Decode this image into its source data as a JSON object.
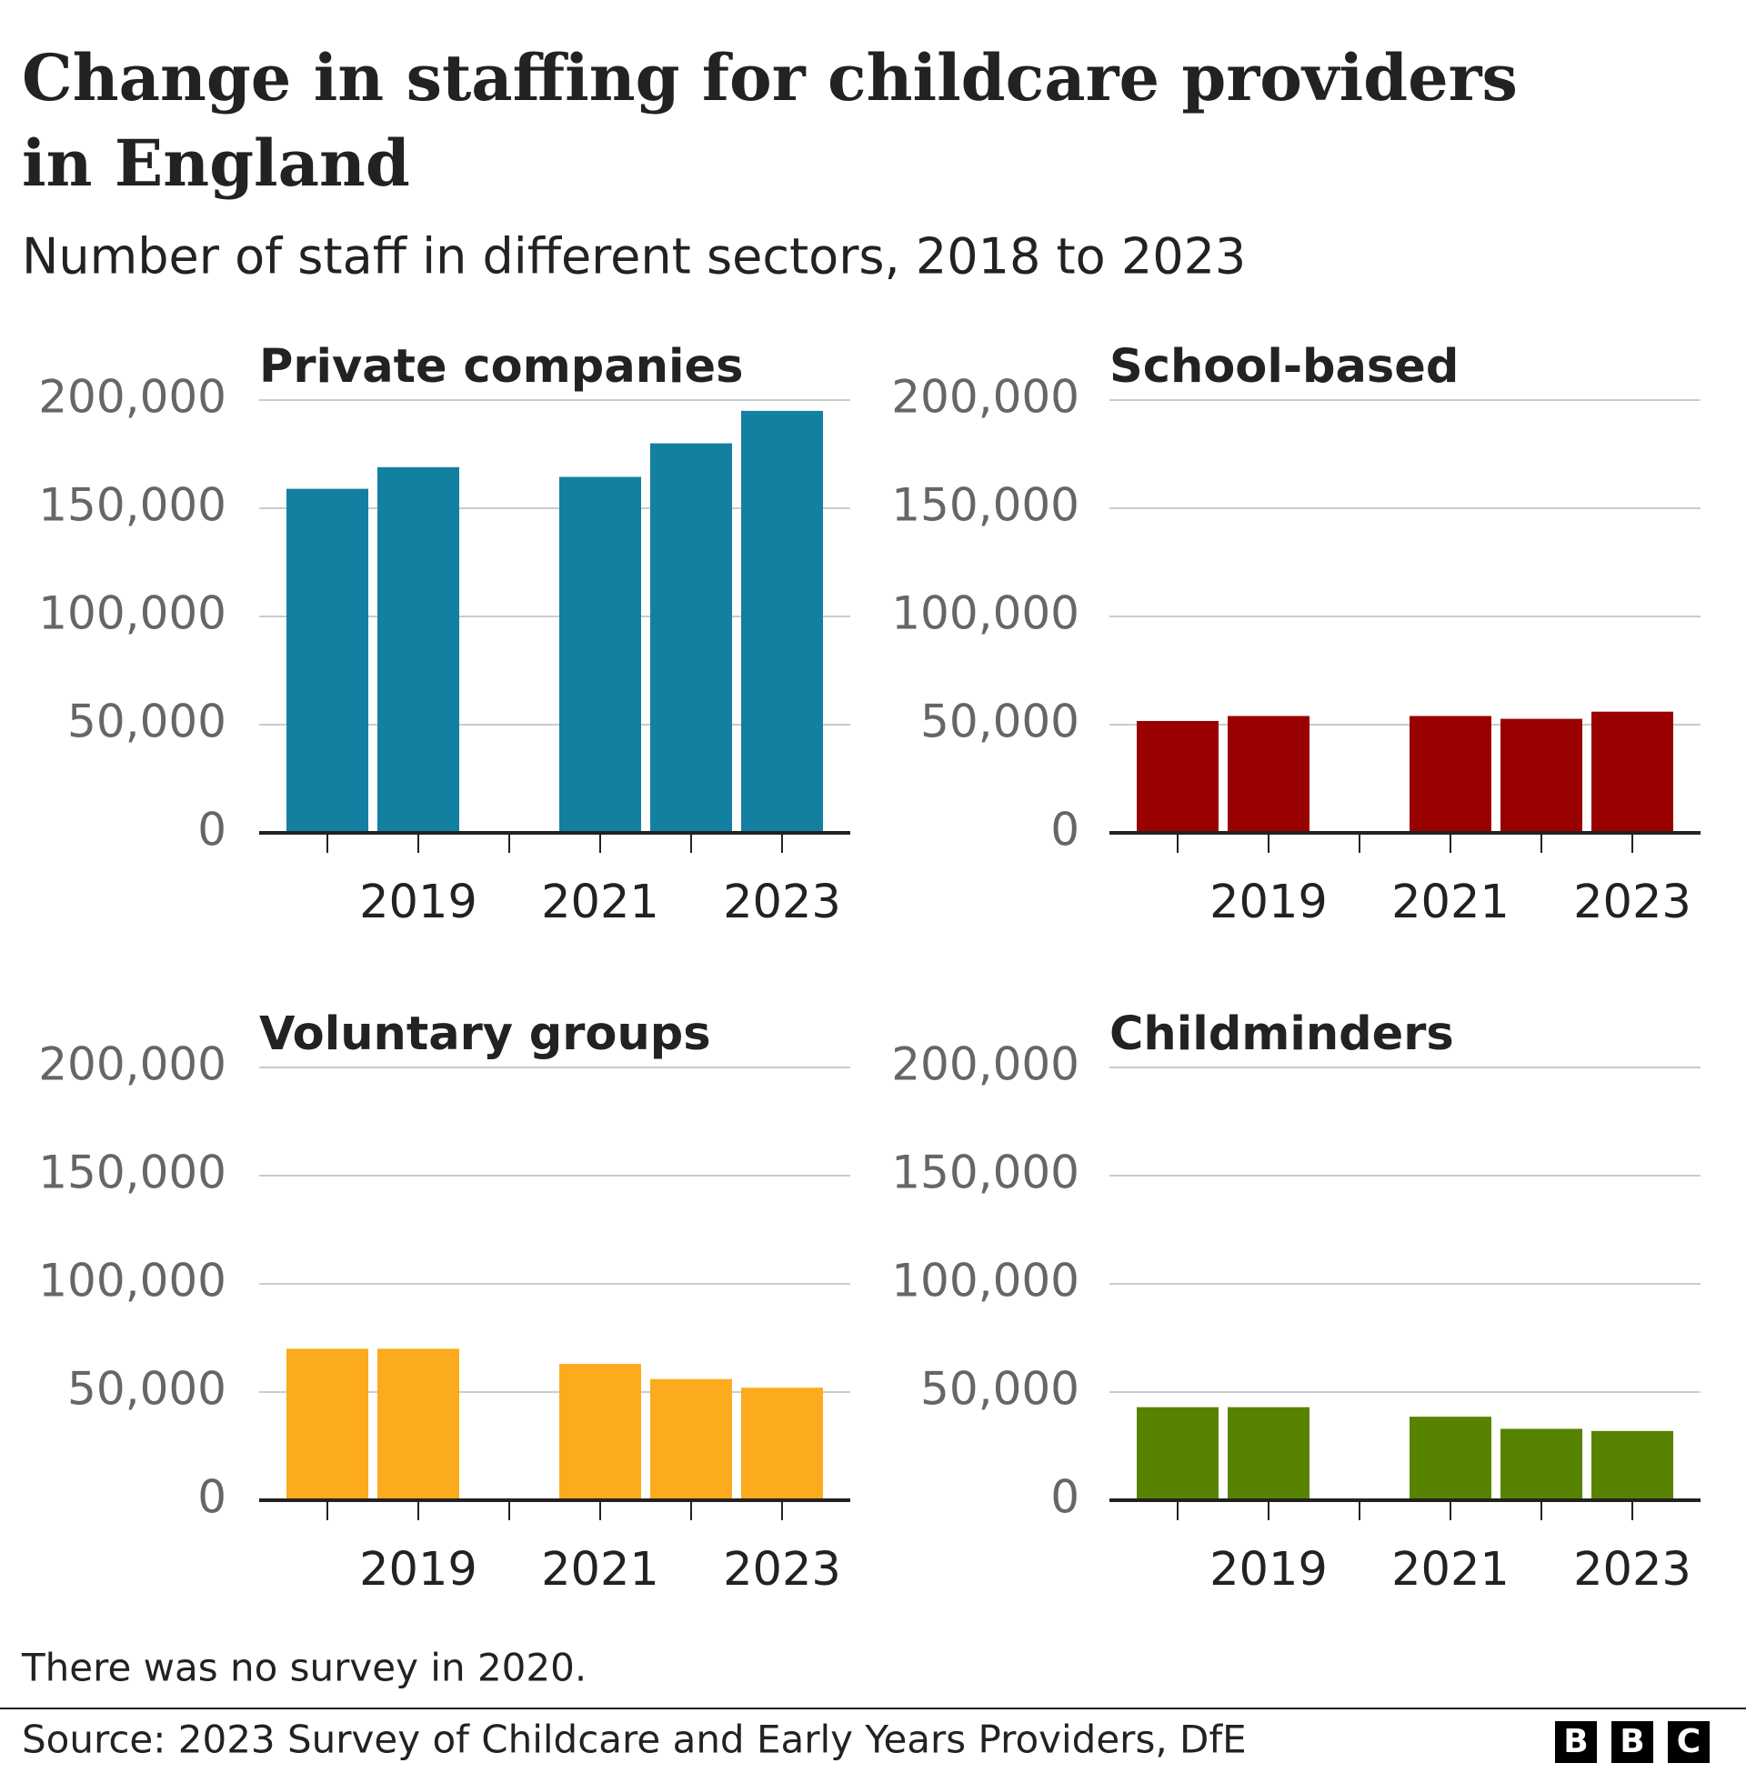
{
  "title": [
    "Change in staffing for childcare providers",
    "in England"
  ],
  "subtitle": "Number of staff in different sectors, 2018 to 2023",
  "note": "There was no survey in 2020.",
  "source": "Source: 2023 Survey of Childcare and Early Years Providers, DfE",
  "logo": [
    "B",
    "B",
    "C"
  ],
  "chart_data": [
    {
      "type": "bar",
      "title": "Private companies",
      "color": "#1380a1",
      "categories": [
        null,
        "2019",
        null,
        "2021",
        null,
        "2023"
      ],
      "values": [
        159000,
        169000,
        null,
        164500,
        180000,
        195000
      ],
      "ylim": [
        0,
        200000
      ],
      "yticks": [
        0,
        {
          "value": 50000,
          "label": "50,000"
        },
        {
          "value": 100000,
          "label": "100,000"
        },
        {
          "value": 150000,
          "label": "150,000"
        },
        {
          "value": 200000,
          "label": "200,000"
        }
      ],
      "grid": true
    },
    {
      "type": "bar",
      "title": "School-based",
      "color": "#990000",
      "categories": [
        null,
        "2019",
        null,
        "2021",
        null,
        "2023"
      ],
      "values": [
        51700,
        54000,
        null,
        54000,
        52700,
        56000
      ],
      "ylim": [
        0,
        200000
      ],
      "yticks": [
        0,
        {
          "value": 50000,
          "label": "50,000"
        },
        {
          "value": 100000,
          "label": "100,000"
        },
        {
          "value": 150000,
          "label": "150,000"
        },
        {
          "value": 200000,
          "label": "200,000"
        }
      ],
      "grid": true
    },
    {
      "type": "bar",
      "title": "Voluntary groups",
      "color": "#fbab1d",
      "categories": [
        null,
        "2019",
        null,
        "2021",
        null,
        "2023"
      ],
      "values": [
        70000,
        70000,
        null,
        63000,
        56000,
        52000
      ],
      "ylim": [
        0,
        200000
      ],
      "yticks": [
        0,
        {
          "value": 50000,
          "label": "50,000"
        },
        {
          "value": 100000,
          "label": "100,000"
        },
        {
          "value": 150000,
          "label": "150,000"
        },
        {
          "value": 200000,
          "label": "200,000"
        }
      ],
      "grid": true
    },
    {
      "type": "bar",
      "title": "Childminders",
      "color": "#588300",
      "categories": [
        null,
        "2019",
        null,
        "2021",
        null,
        "2023"
      ],
      "values": [
        43000,
        43000,
        null,
        38600,
        33000,
        32000
      ],
      "ylim": [
        0,
        200000
      ],
      "yticks": [
        0,
        {
          "value": 50000,
          "label": "50,000"
        },
        {
          "value": 100000,
          "label": "100,000"
        },
        {
          "value": 150000,
          "label": "150,000"
        },
        {
          "value": 200000,
          "label": "200,000"
        }
      ],
      "grid": true
    }
  ]
}
